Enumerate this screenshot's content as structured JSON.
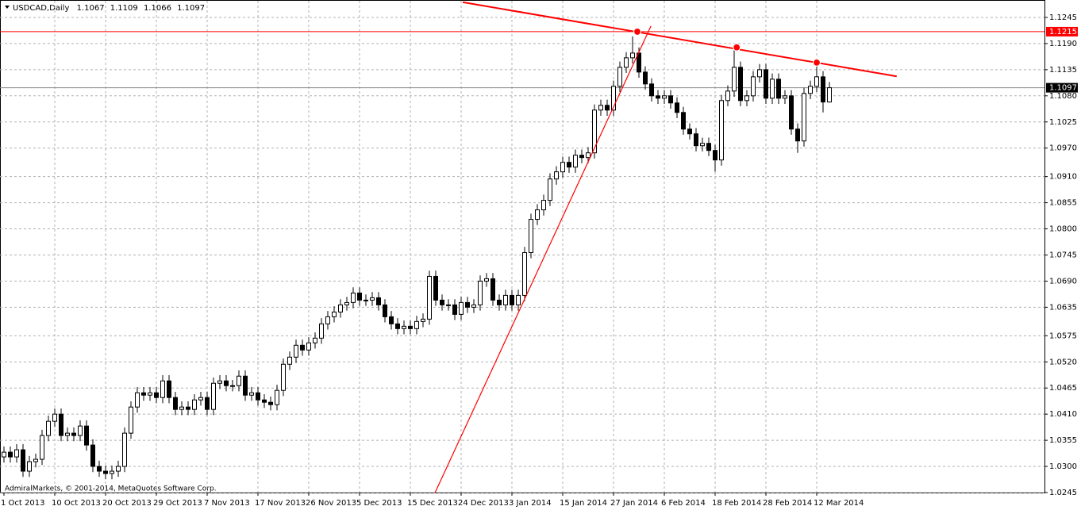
{
  "chart_data": {
    "type": "candlestick",
    "symbol": "USDCAD,Daily",
    "copyright": "AdmiralMarkets, © 2001-2014, MetaQuotes Software Corp.",
    "categories": [
      "1 Oct 2013",
      null,
      null,
      null,
      null,
      null,
      null,
      null,
      "10 Oct 2013",
      null,
      null,
      null,
      null,
      null,
      null,
      null,
      "20 Oct 2013",
      null,
      null,
      null,
      null,
      null,
      null,
      null,
      "29 Oct 2013",
      null,
      null,
      null,
      null,
      null,
      null,
      null,
      "7 Nov 2013",
      null,
      null,
      null,
      null,
      null,
      null,
      null,
      "17 Nov 2013",
      null,
      null,
      null,
      null,
      null,
      null,
      null,
      "26 Nov 2013",
      null,
      null,
      null,
      null,
      null,
      null,
      null,
      "5 Dec 2013",
      null,
      null,
      null,
      null,
      null,
      null,
      null,
      "15 Dec 2013",
      null,
      null,
      null,
      null,
      null,
      null,
      null,
      "24 Dec 2013",
      null,
      null,
      null,
      null,
      null,
      null,
      null,
      "3 Jan 2014",
      null,
      null,
      null,
      null,
      null,
      null,
      null,
      "15 Jan 2014",
      null,
      null,
      null,
      null,
      null,
      null,
      null,
      "27 Jan 2014",
      null,
      null,
      null,
      null,
      null,
      null,
      null,
      "6 Feb 2014",
      null,
      null,
      null,
      null,
      null,
      null,
      null,
      "18 Feb 2014",
      null,
      null,
      null,
      null,
      null,
      null,
      null,
      "28 Feb 2014",
      null,
      null,
      null,
      null,
      null,
      null,
      null,
      "12 Mar 2014",
      null,
      null
    ],
    "open": [
      1.032,
      1.033,
      1.032,
      1.0335,
      1.029,
      1.031,
      1.0315,
      1.0365,
      1.0395,
      1.041,
      1.0365,
      1.037,
      1.0365,
      1.0385,
      1.0345,
      1.03,
      1.029,
      1.0285,
      1.029,
      1.03,
      1.037,
      1.0425,
      1.0455,
      1.045,
      1.0455,
      1.0445,
      1.048,
      1.0445,
      1.042,
      1.0425,
      1.042,
      1.044,
      1.0445,
      1.042,
      1.0475,
      1.048,
      1.047,
      1.047,
      1.049,
      1.045,
      1.0455,
      1.044,
      1.0435,
      1.043,
      1.046,
      1.0515,
      1.053,
      1.0555,
      1.0545,
      1.056,
      1.057,
      1.06,
      1.0615,
      1.0625,
      1.064,
      1.0645,
      1.0665,
      1.065,
      1.065,
      1.0655,
      1.064,
      1.0615,
      1.06,
      1.059,
      1.0595,
      1.059,
      1.0605,
      1.061,
      1.07,
      1.065,
      1.064,
      1.064,
      1.062,
      1.0645,
      1.0635,
      1.064,
      1.069,
      1.0695,
      1.065,
      1.064,
      1.066,
      1.064,
      1.066,
      1.075,
      1.082,
      1.084,
      1.086,
      1.0905,
      1.092,
      1.094,
      1.093,
      1.0955,
      1.095,
      1.096,
      1.105,
      1.106,
      1.105,
      1.11,
      1.114,
      1.116,
      1.117,
      1.113,
      1.1105,
      1.108,
      1.1075,
      1.108,
      1.1065,
      1.1045,
      1.101,
      1.1,
      1.0975,
      1.098,
      1.0965,
      1.0945,
      1.107,
      1.109,
      1.114,
      1.107,
      1.108,
      1.112,
      1.1135,
      1.1075,
      1.1115,
      1.1075,
      1.108,
      1.101,
      1.0985,
      1.1085,
      1.11,
      1.112,
      1.1067
    ],
    "high": [
      1.0342,
      1.0342,
      1.0347,
      1.0347,
      1.0322,
      1.0327,
      1.0377,
      1.0407,
      1.0422,
      1.0422,
      1.0382,
      1.0382,
      1.0397,
      1.0397,
      1.0357,
      1.0312,
      1.0302,
      1.0302,
      1.0312,
      1.0382,
      1.0437,
      1.0467,
      1.0467,
      1.0467,
      1.0467,
      1.0492,
      1.0492,
      1.0457,
      1.0437,
      1.0437,
      1.0452,
      1.0457,
      1.0457,
      1.0487,
      1.0492,
      1.0492,
      1.0482,
      1.0502,
      1.0502,
      1.0467,
      1.0467,
      1.0452,
      1.0447,
      1.0472,
      1.0527,
      1.0542,
      1.0567,
      1.0567,
      1.0572,
      1.0582,
      1.0612,
      1.0627,
      1.0637,
      1.0652,
      1.0657,
      1.0677,
      1.0677,
      1.0662,
      1.0667,
      1.0667,
      1.0652,
      1.0627,
      1.0612,
      1.0607,
      1.0607,
      1.0617,
      1.0622,
      1.0712,
      1.0712,
      1.0662,
      1.0652,
      1.0652,
      1.0657,
      1.0657,
      1.0652,
      1.0702,
      1.0707,
      1.0707,
      1.0662,
      1.0672,
      1.0672,
      1.0672,
      1.0762,
      1.0832,
      1.0852,
      1.0872,
      1.0917,
      1.0932,
      1.0952,
      1.0952,
      1.0967,
      1.0967,
      1.0972,
      1.1062,
      1.1072,
      1.1072,
      1.1112,
      1.1152,
      1.1172,
      1.1205,
      1.1182,
      1.1142,
      1.1117,
      1.1092,
      1.1092,
      1.1092,
      1.1077,
      1.1057,
      1.1022,
      1.1012,
      1.0992,
      1.0992,
      1.0977,
      1.1082,
      1.1102,
      1.118,
      1.1152,
      1.1092,
      1.1132,
      1.1147,
      1.1147,
      1.1127,
      1.1127,
      1.1092,
      1.1092,
      1.1022,
      1.1097,
      1.1112,
      1.1145,
      1.1132,
      1.1109
    ],
    "low": [
      1.0308,
      1.0308,
      1.0308,
      1.0278,
      1.0278,
      1.0298,
      1.0303,
      1.0353,
      1.0383,
      1.0353,
      1.0353,
      1.0353,
      1.0353,
      1.0333,
      1.0288,
      1.0278,
      1.0273,
      1.0273,
      1.0278,
      1.0288,
      1.0358,
      1.0413,
      1.0438,
      1.0438,
      1.0433,
      1.0433,
      1.0433,
      1.0408,
      1.0408,
      1.0408,
      1.0408,
      1.0428,
      1.0408,
      1.0408,
      1.0463,
      1.0458,
      1.0458,
      1.0458,
      1.0438,
      1.0438,
      1.0428,
      1.0423,
      1.0418,
      1.0418,
      1.0448,
      1.0503,
      1.0518,
      1.0533,
      1.0533,
      1.0548,
      1.0558,
      1.0588,
      1.0603,
      1.0613,
      1.0628,
      1.0633,
      1.0638,
      1.0638,
      1.0638,
      1.0628,
      1.0603,
      1.0588,
      1.0578,
      1.0578,
      1.0578,
      1.0578,
      1.0593,
      1.0598,
      1.0638,
      1.0628,
      1.0628,
      1.0608,
      1.0608,
      1.0623,
      1.0623,
      1.0628,
      1.0678,
      1.0638,
      1.0628,
      1.0628,
      1.0628,
      1.0628,
      1.0648,
      1.0738,
      1.0808,
      1.0828,
      1.0848,
      1.0893,
      1.0908,
      1.0918,
      1.0918,
      1.0938,
      1.0938,
      1.0948,
      1.1038,
      1.1038,
      1.1038,
      1.1088,
      1.1128,
      1.1148,
      1.1118,
      1.1093,
      1.1068,
      1.1063,
      1.1063,
      1.1053,
      1.1033,
      1.0998,
      1.0988,
      1.0963,
      1.0963,
      1.0953,
      1.092,
      1.0933,
      1.1058,
      1.1078,
      1.1058,
      1.1058,
      1.1068,
      1.1108,
      1.1063,
      1.1063,
      1.1063,
      1.1063,
      1.0998,
      1.096,
      1.0973,
      1.1073,
      1.1088,
      1.1045,
      1.1066
    ],
    "close": [
      1.033,
      1.032,
      1.0335,
      1.029,
      1.031,
      1.0315,
      1.0365,
      1.0395,
      1.041,
      1.0365,
      1.037,
      1.0365,
      1.0385,
      1.0345,
      1.03,
      1.029,
      1.0285,
      1.029,
      1.03,
      1.037,
      1.0425,
      1.0455,
      1.045,
      1.0455,
      1.0445,
      1.048,
      1.0445,
      1.042,
      1.0425,
      1.042,
      1.044,
      1.0445,
      1.042,
      1.0475,
      1.048,
      1.047,
      1.047,
      1.049,
      1.045,
      1.0455,
      1.044,
      1.0435,
      1.043,
      1.046,
      1.0515,
      1.053,
      1.0555,
      1.0545,
      1.056,
      1.057,
      1.06,
      1.0615,
      1.0625,
      1.064,
      1.0645,
      1.0665,
      1.065,
      1.065,
      1.0655,
      1.064,
      1.0615,
      1.06,
      1.059,
      1.0595,
      1.059,
      1.0605,
      1.061,
      1.07,
      1.065,
      1.064,
      1.064,
      1.062,
      1.0645,
      1.0635,
      1.064,
      1.069,
      1.0695,
      1.065,
      1.064,
      1.066,
      1.064,
      1.066,
      1.075,
      1.082,
      1.084,
      1.086,
      1.0905,
      1.092,
      1.094,
      1.093,
      1.0955,
      1.095,
      1.096,
      1.105,
      1.106,
      1.105,
      1.11,
      1.114,
      1.116,
      1.117,
      1.113,
      1.1105,
      1.108,
      1.1075,
      1.108,
      1.1065,
      1.1045,
      1.101,
      1.1,
      1.0975,
      1.098,
      1.0965,
      1.0945,
      1.107,
      1.109,
      1.114,
      1.107,
      1.108,
      1.112,
      1.1135,
      1.1075,
      1.1115,
      1.1075,
      1.108,
      1.101,
      1.0985,
      1.1085,
      1.11,
      1.112,
      1.1067,
      1.1097
    ],
    "ylim": [
      1.0245,
      1.128
    ],
    "yticks": [
      1.0245,
      {
        "value": 1.03,
        "label": "1.0300"
      },
      1.0355,
      {
        "value": 1.041,
        "label": "1.0410"
      },
      1.0465,
      {
        "value": 1.052,
        "label": "1.0520"
      },
      1.0575,
      1.0635,
      {
        "value": 1.069,
        "label": "1.0690"
      },
      1.0745,
      {
        "value": 1.08,
        "label": "1.0800"
      },
      1.0855,
      {
        "value": 1.091,
        "label": "1.0910"
      },
      {
        "value": 1.097,
        "label": "1.0970"
      },
      1.1025,
      {
        "value": 1.108,
        "label": "1.1080"
      },
      1.1135,
      {
        "value": 1.119,
        "label": "1.1190"
      },
      1.1245
    ],
    "grid": true,
    "hline": {
      "value": 1.1215,
      "color": "#ff0000"
    },
    "trendlines": [
      {
        "x": [
          72.25,
          140.6
        ],
        "y": [
          1.1277,
          1.1121
        ],
        "color": "#ff0000"
      },
      {
        "x": [
          67.9,
          101.9
        ],
        "y": [
          1.0245,
          1.1227
        ],
        "color": "#ff0000"
      }
    ],
    "markers": {
      "x": [
        99.75,
        115.4,
        128
      ],
      "y": [
        1.1215,
        1.1182,
        1.115
      ],
      "color": "#ff0000"
    }
  }
}
